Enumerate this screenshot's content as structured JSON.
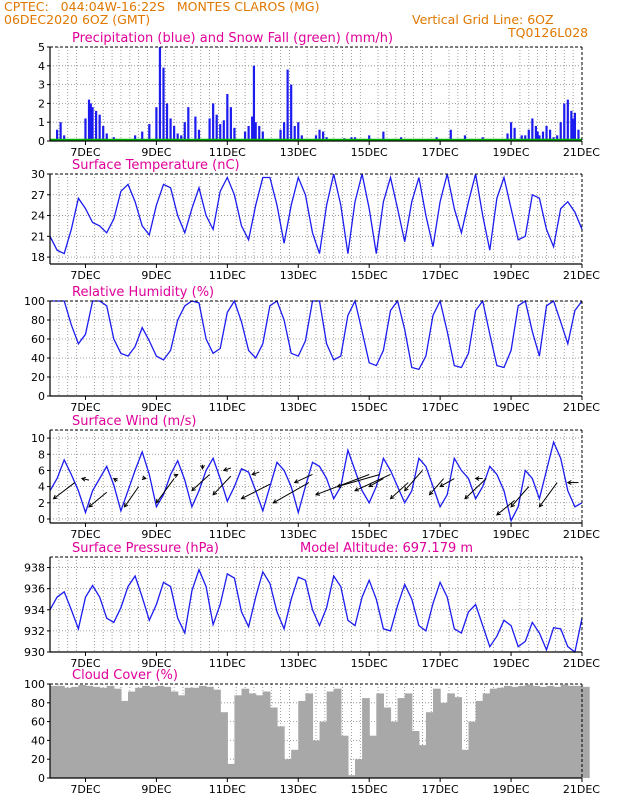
{
  "header": {
    "line1_left": "CPTEC:   044:04W-16:22S   MONTES CLAROS (MG)",
    "line2_left": "06DEC2020 6OZ (GMT)",
    "line2_right": "Vertical Grid Line: 6OZ",
    "line3_right": "TQ0126L028"
  },
  "colors": {
    "series": "#1c1cf0",
    "snow": "#00b000",
    "title": "#e0009a",
    "header": "#e07800",
    "cloud": "#a8a8a8",
    "grid": "#888888"
  },
  "chart_data": [
    {
      "type": "bar",
      "title": "Precipitation (blue) and Snow Fall (green) (mm/h)",
      "x_ticks": [
        "7DEC",
        "9DEC",
        "11DEC",
        "13DEC",
        "15DEC",
        "17DEC",
        "19DEC",
        "21DEC"
      ],
      "ylim": [
        0,
        5
      ],
      "y_ticks": [
        "0",
        "1",
        "2",
        "3",
        "4",
        "5"
      ],
      "x": [
        0.2,
        0.3,
        0.4,
        1.0,
        1.1,
        1.15,
        1.2,
        1.3,
        1.4,
        1.5,
        1.6,
        1.8,
        2.4,
        2.6,
        2.8,
        3.0,
        3.1,
        3.2,
        3.3,
        3.4,
        3.5,
        3.6,
        3.7,
        3.8,
        3.9,
        4.1,
        4.2,
        4.5,
        4.6,
        4.7,
        4.8,
        4.9,
        5.0,
        5.1,
        5.2,
        5.5,
        5.6,
        5.7,
        5.75,
        5.8,
        5.9,
        6.0,
        6.5,
        6.6,
        6.7,
        6.8,
        6.9,
        7.0,
        7.1,
        7.5,
        7.6,
        7.7,
        7.8,
        7.9,
        8.0,
        8.3,
        8.5,
        8.6,
        9.0,
        9.4,
        9.9,
        10.3,
        10.9,
        11.3,
        11.7,
        12.2,
        12.6,
        12.9,
        13.0,
        13.1,
        13.3,
        13.4,
        13.5,
        13.6,
        13.7,
        13.75,
        13.8,
        13.9,
        14.0,
        14.1,
        14.2,
        14.3,
        14.4,
        14.5,
        14.6,
        14.7,
        14.75,
        14.8,
        14.9
      ],
      "values": [
        0.6,
        1.0,
        0.3,
        1.2,
        2.2,
        2.0,
        1.8,
        1.6,
        1.4,
        0.8,
        0.4,
        0.2,
        0.3,
        0.5,
        0.9,
        1.8,
        5.0,
        3.9,
        2.0,
        1.2,
        0.8,
        0.4,
        0.3,
        1.0,
        1.8,
        1.3,
        0.6,
        1.2,
        2.0,
        1.4,
        0.9,
        1.1,
        2.5,
        1.8,
        0.7,
        0.5,
        0.8,
        1.3,
        4.0,
        1.0,
        0.8,
        0.5,
        0.6,
        1.0,
        3.8,
        3.0,
        0.8,
        1.0,
        0.3,
        0.3,
        0.6,
        0.5,
        0.2,
        0.1,
        0.1,
        0.15,
        0.2,
        0.2,
        0.3,
        0.5,
        0.2,
        0.1,
        0.2,
        0.6,
        0.3,
        0.2,
        0.1,
        0.4,
        1.0,
        0.7,
        0.3,
        0.3,
        0.6,
        1.2,
        0.8,
        0.5,
        0.3,
        0.5,
        0.8,
        0.6,
        0.2,
        0.3,
        1.0,
        2.0,
        2.2,
        1.6,
        1.2,
        1.5,
        0.6
      ],
      "snow_values": [
        0.1,
        0.1
      ]
    },
    {
      "type": "line",
      "title": "Surface Temperature (nC)",
      "x_ticks": [
        "7DEC",
        "9DEC",
        "11DEC",
        "13DEC",
        "15DEC",
        "17DEC",
        "19DEC",
        "21DEC"
      ],
      "ylim": [
        17,
        30
      ],
      "y_ticks": [
        "18",
        "21",
        "24",
        "27",
        "30"
      ],
      "x": [
        0.0,
        0.2,
        0.4,
        0.6,
        0.8,
        1.0,
        1.2,
        1.4,
        1.6,
        1.8,
        2.0,
        2.2,
        2.4,
        2.6,
        2.8,
        3.0,
        3.2,
        3.4,
        3.6,
        3.8,
        4.0,
        4.2,
        4.4,
        4.6,
        4.8,
        5.0,
        5.2,
        5.4,
        5.6,
        5.8,
        6.0,
        6.2,
        6.4,
        6.6,
        6.8,
        7.0,
        7.2,
        7.4,
        7.6,
        7.8,
        8.0,
        8.2,
        8.4,
        8.6,
        8.8,
        9.0,
        9.2,
        9.4,
        9.6,
        9.8,
        10.0,
        10.2,
        10.4,
        10.6,
        10.8,
        11.0,
        11.2,
        11.4,
        11.6,
        11.8,
        12.0,
        12.2,
        12.4,
        12.6,
        12.8,
        13.0,
        13.2,
        13.4,
        13.6,
        13.8,
        14.0,
        14.2,
        14.4,
        14.6,
        14.8,
        15.0
      ],
      "values": [
        21,
        19,
        18.5,
        22,
        26.5,
        25,
        23,
        22.5,
        21.5,
        23.5,
        27.5,
        28.5,
        26,
        22.5,
        21.2,
        25.5,
        28.5,
        28,
        24,
        21.5,
        25,
        28,
        24,
        22,
        27.5,
        29.5,
        27,
        22.5,
        20.5,
        25.5,
        29.5,
        29.5,
        25.5,
        20,
        25.5,
        29.5,
        27,
        21.5,
        18.5,
        25.5,
        30,
        25.5,
        18.5,
        26,
        30,
        25,
        18.5,
        26,
        29.5,
        25,
        20.2,
        26,
        29.5,
        24,
        19.5,
        26,
        30,
        25,
        21.5,
        26,
        30,
        24,
        19,
        26.5,
        29.5,
        25,
        20.5,
        21,
        27,
        26.5,
        22,
        19.5,
        25,
        26,
        24.5,
        22
      ]
    },
    {
      "type": "line",
      "title": "Relative Humidity (%)",
      "x_ticks": [
        "7DEC",
        "9DEC",
        "11DEC",
        "13DEC",
        "15DEC",
        "17DEC",
        "19DEC",
        "21DEC"
      ],
      "ylim": [
        0,
        100
      ],
      "y_ticks": [
        "0",
        "20",
        "40",
        "60",
        "80",
        "100"
      ],
      "x": [
        0.0,
        0.2,
        0.4,
        0.6,
        0.8,
        1.0,
        1.2,
        1.4,
        1.6,
        1.8,
        2.0,
        2.2,
        2.4,
        2.6,
        2.8,
        3.0,
        3.2,
        3.4,
        3.6,
        3.8,
        4.0,
        4.2,
        4.4,
        4.6,
        4.8,
        5.0,
        5.2,
        5.4,
        5.6,
        5.8,
        6.0,
        6.2,
        6.4,
        6.6,
        6.8,
        7.0,
        7.2,
        7.4,
        7.6,
        7.8,
        8.0,
        8.2,
        8.4,
        8.6,
        8.8,
        9.0,
        9.2,
        9.4,
        9.6,
        9.8,
        10.0,
        10.2,
        10.4,
        10.6,
        10.8,
        11.0,
        11.2,
        11.4,
        11.6,
        11.8,
        12.0,
        12.2,
        12.4,
        12.6,
        12.8,
        13.0,
        13.2,
        13.4,
        13.6,
        13.8,
        14.0,
        14.2,
        14.4,
        14.6,
        14.8,
        15.0
      ],
      "values": [
        100,
        100,
        100,
        75,
        55,
        65,
        100,
        100,
        95,
        60,
        45,
        42,
        52,
        72,
        58,
        42,
        38,
        48,
        80,
        95,
        100,
        98,
        60,
        45,
        50,
        88,
        100,
        78,
        48,
        40,
        55,
        95,
        100,
        80,
        45,
        42,
        58,
        100,
        100,
        55,
        38,
        42,
        85,
        100,
        68,
        35,
        32,
        48,
        90,
        100,
        70,
        30,
        28,
        42,
        85,
        100,
        68,
        32,
        30,
        45,
        90,
        100,
        65,
        32,
        30,
        48,
        95,
        100,
        68,
        42,
        95,
        100,
        78,
        55,
        90,
        100
      ]
    },
    {
      "type": "line",
      "title": "Surface Wind (m/s)",
      "x_ticks": [
        "7DEC",
        "9DEC",
        "11DEC",
        "13DEC",
        "15DEC",
        "17DEC",
        "19DEC",
        "21DEC"
      ],
      "ylim": [
        -0.5,
        11
      ],
      "y_ticks": [
        "0",
        "2",
        "4",
        "6",
        "8",
        "10"
      ],
      "x": [
        0.0,
        0.2,
        0.4,
        0.6,
        0.8,
        1.0,
        1.2,
        1.4,
        1.6,
        1.8,
        2.0,
        2.2,
        2.4,
        2.6,
        2.8,
        3.0,
        3.2,
        3.4,
        3.6,
        3.8,
        4.0,
        4.2,
        4.4,
        4.6,
        4.8,
        5.0,
        5.2,
        5.4,
        5.6,
        5.8,
        6.0,
        6.2,
        6.4,
        6.6,
        6.8,
        7.0,
        7.2,
        7.4,
        7.6,
        7.8,
        8.0,
        8.2,
        8.4,
        8.6,
        8.8,
        9.0,
        9.2,
        9.4,
        9.6,
        9.8,
        10.0,
        10.2,
        10.4,
        10.6,
        10.8,
        11.0,
        11.2,
        11.4,
        11.6,
        11.8,
        12.0,
        12.2,
        12.4,
        12.6,
        12.8,
        13.0,
        13.2,
        13.4,
        13.6,
        13.8,
        14.0,
        14.2,
        14.4,
        14.6,
        14.8,
        15.0
      ],
      "values": [
        3.5,
        5.0,
        7.3,
        5.5,
        3.5,
        0.8,
        3.5,
        5.0,
        6.5,
        4.2,
        1.0,
        3.5,
        6.0,
        8.3,
        5.5,
        1.5,
        3.0,
        5.5,
        7.2,
        4.8,
        1.5,
        3.5,
        6.0,
        7.5,
        5.0,
        2.2,
        4.0,
        6.2,
        5.8,
        3.5,
        1.0,
        4.0,
        7.0,
        6.0,
        4.0,
        0.8,
        4.0,
        7.0,
        6.5,
        5.0,
        2.5,
        4.0,
        8.5,
        6.0,
        3.5,
        2.0,
        4.0,
        7.5,
        6.0,
        4.0,
        2.0,
        3.5,
        7.5,
        6.5,
        4.0,
        1.5,
        3.0,
        7.5,
        6.0,
        5.0,
        2.5,
        4.0,
        6.5,
        5.5,
        3.5,
        -0.2,
        1.5,
        6.0,
        5.0,
        2.5,
        6.0,
        9.5,
        7.5,
        3.5,
        1.5,
        2.0
      ],
      "arrows": [
        {
          "x": 0.1,
          "y": 2.5,
          "dx": 0.6,
          "dy": 2.0
        },
        {
          "x": 0.9,
          "y": 5.0,
          "dx": 0.2,
          "dy": -0.2
        },
        {
          "x": 1.1,
          "y": 1.5,
          "dx": 0.5,
          "dy": 1.8
        },
        {
          "x": 1.8,
          "y": 5.0,
          "dx": 0.1,
          "dy": -0.3
        },
        {
          "x": 2.1,
          "y": 1.5,
          "dx": 0.4,
          "dy": 2.5
        },
        {
          "x": 2.7,
          "y": 5.0,
          "dx": -0.1,
          "dy": 0.1
        },
        {
          "x": 3.0,
          "y": 2.0,
          "dx": 0.5,
          "dy": 3.0
        },
        {
          "x": 3.6,
          "y": 5.5,
          "dx": -0.1,
          "dy": -0.2
        },
        {
          "x": 4.0,
          "y": 3.5,
          "dx": 0.5,
          "dy": 2.0
        },
        {
          "x": 4.3,
          "y": 6.2,
          "dx": 0.0,
          "dy": 0.5
        },
        {
          "x": 4.6,
          "y": 3.0,
          "dx": 0.5,
          "dy": 2.3
        },
        {
          "x": 4.9,
          "y": 6.0,
          "dx": 0.2,
          "dy": 0.3
        },
        {
          "x": 5.4,
          "y": 2.5,
          "dx": 0.8,
          "dy": 1.8
        },
        {
          "x": 5.7,
          "y": 5.5,
          "dx": 0.2,
          "dy": 0.3
        },
        {
          "x": 6.3,
          "y": 2.0,
          "dx": 1.0,
          "dy": 2.5
        },
        {
          "x": 6.9,
          "y": 4.5,
          "dx": 0.5,
          "dy": 1.0
        },
        {
          "x": 7.5,
          "y": 3.0,
          "dx": 1.5,
          "dy": 2.5
        },
        {
          "x": 8.1,
          "y": 4.0,
          "dx": 1.2,
          "dy": 1.5
        },
        {
          "x": 8.6,
          "y": 3.5,
          "dx": 1.0,
          "dy": 2.0
        },
        {
          "x": 9.0,
          "y": 4.0,
          "dx": 0.4,
          "dy": 1.0
        },
        {
          "x": 9.6,
          "y": 2.5,
          "dx": 0.5,
          "dy": 2.0
        },
        {
          "x": 10.0,
          "y": 3.5,
          "dx": 0.5,
          "dy": 2.5
        },
        {
          "x": 10.7,
          "y": 3.0,
          "dx": 0.4,
          "dy": 2.0
        },
        {
          "x": 11.0,
          "y": 4.0,
          "dx": 0.4,
          "dy": 1.0
        },
        {
          "x": 11.7,
          "y": 2.5,
          "dx": 0.6,
          "dy": 2.5
        },
        {
          "x": 12.0,
          "y": 5.0,
          "dx": 0.2,
          "dy": 0.0
        },
        {
          "x": 12.6,
          "y": 0.5,
          "dx": 0.5,
          "dy": 1.8
        },
        {
          "x": 13.0,
          "y": 1.5,
          "dx": 0.5,
          "dy": 2.5
        },
        {
          "x": 13.8,
          "y": 1.5,
          "dx": 0.5,
          "dy": 3.0
        },
        {
          "x": 14.6,
          "y": 4.5,
          "dx": 0.3,
          "dy": 0.0
        }
      ]
    },
    {
      "type": "line",
      "title": "Surface Pressure (hPa)",
      "subtitle": "Model Altitude: 697.179  m",
      "x_ticks": [
        "7DEC",
        "9DEC",
        "11DEC",
        "13DEC",
        "15DEC",
        "17DEC",
        "19DEC",
        "21DEC"
      ],
      "ylim": [
        930,
        939
      ],
      "y_ticks": [
        "930",
        "932",
        "934",
        "936",
        "938"
      ],
      "x": [
        0.0,
        0.2,
        0.4,
        0.6,
        0.8,
        1.0,
        1.2,
        1.4,
        1.6,
        1.8,
        2.0,
        2.2,
        2.4,
        2.6,
        2.8,
        3.0,
        3.2,
        3.4,
        3.6,
        3.8,
        4.0,
        4.2,
        4.4,
        4.6,
        4.8,
        5.0,
        5.2,
        5.4,
        5.6,
        5.8,
        6.0,
        6.2,
        6.4,
        6.6,
        6.8,
        7.0,
        7.2,
        7.4,
        7.6,
        7.8,
        8.0,
        8.2,
        8.4,
        8.6,
        8.8,
        9.0,
        9.2,
        9.4,
        9.6,
        9.8,
        10.0,
        10.2,
        10.4,
        10.6,
        10.8,
        11.0,
        11.2,
        11.4,
        11.6,
        11.8,
        12.0,
        12.2,
        12.4,
        12.6,
        12.8,
        13.0,
        13.2,
        13.4,
        13.6,
        13.8,
        14.0,
        14.2,
        14.4,
        14.6,
        14.8,
        15.0
      ],
      "values": [
        934,
        935.2,
        935.7,
        934,
        932.2,
        935.2,
        936.3,
        935.2,
        933.2,
        932.8,
        934.2,
        936.2,
        937.2,
        935.2,
        933,
        934.5,
        936.6,
        936.2,
        933.2,
        931.8,
        935.8,
        937.8,
        936.2,
        932.6,
        934.5,
        937.4,
        937,
        933.8,
        932.4,
        935.2,
        937.6,
        936.5,
        933.8,
        932.2,
        935,
        937.1,
        936.8,
        934,
        932.5,
        934.2,
        937.2,
        936.2,
        933,
        932.5,
        935.2,
        936.8,
        935,
        932.2,
        932,
        934.4,
        936.4,
        935,
        932.5,
        932,
        934.6,
        936.6,
        935.2,
        932.2,
        931.8,
        933.8,
        934.5,
        932.5,
        930.5,
        931.5,
        933,
        932.5,
        930.5,
        931,
        932.8,
        931.8,
        930.2,
        932.3,
        932.2,
        930.5,
        930,
        933.2
      ]
    },
    {
      "type": "bar",
      "title": "Cloud Cover (%)",
      "x_ticks": [
        "7DEC",
        "9DEC",
        "11DEC",
        "13DEC",
        "15DEC",
        "17DEC",
        "19DEC",
        "21DEC"
      ],
      "ylim": [
        0,
        100
      ],
      "y_ticks": [
        "0",
        "20",
        "40",
        "60",
        "80",
        "100"
      ],
      "x": [
        0.0,
        0.2,
        0.4,
        0.6,
        0.8,
        1.0,
        1.2,
        1.4,
        1.6,
        1.8,
        2.0,
        2.2,
        2.4,
        2.6,
        2.8,
        3.0,
        3.2,
        3.4,
        3.6,
        3.8,
        4.0,
        4.2,
        4.4,
        4.6,
        4.8,
        5.0,
        5.2,
        5.4,
        5.6,
        5.8,
        6.0,
        6.2,
        6.4,
        6.6,
        6.8,
        7.0,
        7.2,
        7.4,
        7.6,
        7.8,
        8.0,
        8.2,
        8.4,
        8.6,
        8.8,
        9.0,
        9.2,
        9.4,
        9.6,
        9.8,
        10.0,
        10.2,
        10.4,
        10.6,
        10.8,
        11.0,
        11.2,
        11.4,
        11.6,
        11.8,
        12.0,
        12.2,
        12.4,
        12.6,
        12.8,
        13.0,
        13.2,
        13.4,
        13.6,
        13.8,
        14.0,
        14.2,
        14.4,
        14.6,
        14.8,
        15.0
      ],
      "values": [
        98,
        98,
        96,
        97,
        99,
        98,
        97,
        96,
        98,
        95,
        82,
        92,
        96,
        98,
        97,
        98,
        97,
        92,
        88,
        96,
        96,
        98,
        97,
        94,
        70,
        15,
        88,
        95,
        90,
        88,
        92,
        75,
        55,
        20,
        30,
        82,
        90,
        40,
        60,
        92,
        95,
        45,
        3,
        20,
        85,
        45,
        90,
        75,
        60,
        85,
        90,
        50,
        35,
        70,
        95,
        80,
        90,
        86,
        30,
        60,
        82,
        90,
        95,
        96,
        98,
        97,
        98,
        99,
        98,
        97,
        98,
        97,
        99,
        98,
        98,
        97
      ]
    }
  ]
}
